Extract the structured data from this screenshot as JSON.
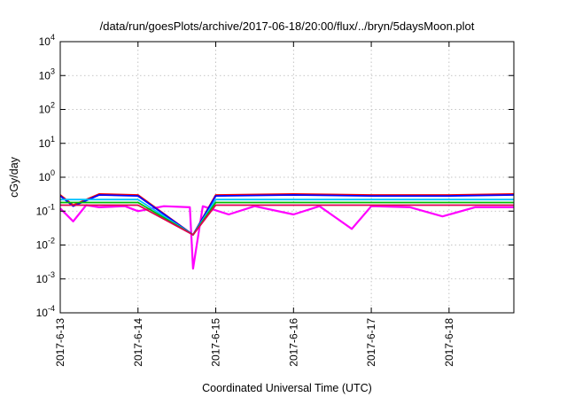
{
  "chart_data": {
    "type": "line",
    "title": "/data/run/goesPlots/archive/2017-06-18/20:00/flux/../bryn/5daysMoon.plot",
    "xlabel": "Coordinated Universal Time (UTC)",
    "ylabel": "cGy/day",
    "y_scale": "log",
    "ylim": [
      0.0001,
      10000
    ],
    "y_ticks": [
      {
        "value": 0.0001,
        "base": "10",
        "exp": "-4"
      },
      {
        "value": 0.001,
        "base": "10",
        "exp": "-3"
      },
      {
        "value": 0.01,
        "base": "10",
        "exp": "-2"
      },
      {
        "value": 0.1,
        "base": "10",
        "exp": "-1"
      },
      {
        "value": 1,
        "base": "10",
        "exp": "0"
      },
      {
        "value": 10,
        "base": "10",
        "exp": "1"
      },
      {
        "value": 100,
        "base": "10",
        "exp": "2"
      },
      {
        "value": 1000,
        "base": "10",
        "exp": "3"
      },
      {
        "value": 10000,
        "base": "10",
        "exp": "4"
      }
    ],
    "xlim": [
      "2017-06-13",
      "2017-06-18 20:00"
    ],
    "x_ticks": [
      "2017-6-13",
      "2017-6-14",
      "2017-6-15",
      "2017-6-16",
      "2017-6-17",
      "2017-6-18"
    ],
    "grid": true,
    "series": [
      {
        "color": "#ff00ff",
        "values": [
          {
            "x": "2017-06-13 00:00",
            "y": 0.12
          },
          {
            "x": "2017-06-13 04:00",
            "y": 0.05
          },
          {
            "x": "2017-06-13 08:00",
            "y": 0.15
          },
          {
            "x": "2017-06-13 12:00",
            "y": 0.13
          },
          {
            "x": "2017-06-13 20:00",
            "y": 0.14
          },
          {
            "x": "2017-06-14 00:00",
            "y": 0.1
          },
          {
            "x": "2017-06-14 08:00",
            "y": 0.14
          },
          {
            "x": "2017-06-14 16:00",
            "y": 0.13
          },
          {
            "x": "2017-06-14 17:00",
            "y": 0.002
          },
          {
            "x": "2017-06-14 20:00",
            "y": 0.14
          },
          {
            "x": "2017-06-15 04:00",
            "y": 0.08
          },
          {
            "x": "2017-06-15 12:00",
            "y": 0.14
          },
          {
            "x": "2017-06-16 00:00",
            "y": 0.08
          },
          {
            "x": "2017-06-16 08:00",
            "y": 0.14
          },
          {
            "x": "2017-06-16 18:00",
            "y": 0.03
          },
          {
            "x": "2017-06-17 00:00",
            "y": 0.14
          },
          {
            "x": "2017-06-17 12:00",
            "y": 0.13
          },
          {
            "x": "2017-06-17 22:00",
            "y": 0.07
          },
          {
            "x": "2017-06-18 08:00",
            "y": 0.13
          },
          {
            "x": "2017-06-18 20:00",
            "y": 0.13
          }
        ]
      },
      {
        "color": "#ff0000",
        "values": [
          {
            "x": "2017-06-13 00:00",
            "y": 0.3
          },
          {
            "x": "2017-06-13 04:00",
            "y": 0.15
          },
          {
            "x": "2017-06-13 12:00",
            "y": 0.32
          },
          {
            "x": "2017-06-14 00:00",
            "y": 0.3
          },
          {
            "x": "2017-06-14 17:00",
            "y": 0.02
          },
          {
            "x": "2017-06-15 00:00",
            "y": 0.3
          },
          {
            "x": "2017-06-16 00:00",
            "y": 0.32
          },
          {
            "x": "2017-06-17 00:00",
            "y": 0.3
          },
          {
            "x": "2017-06-18 00:00",
            "y": 0.3
          },
          {
            "x": "2017-06-18 20:00",
            "y": 0.32
          }
        ]
      },
      {
        "color": "#0000ff",
        "values": [
          {
            "x": "2017-06-13 00:00",
            "y": 0.28
          },
          {
            "x": "2017-06-13 04:00",
            "y": 0.14
          },
          {
            "x": "2017-06-13 12:00",
            "y": 0.3
          },
          {
            "x": "2017-06-14 00:00",
            "y": 0.28
          },
          {
            "x": "2017-06-14 17:00",
            "y": 0.02
          },
          {
            "x": "2017-06-15 00:00",
            "y": 0.28
          },
          {
            "x": "2017-06-16 00:00",
            "y": 0.3
          },
          {
            "x": "2017-06-17 00:00",
            "y": 0.28
          },
          {
            "x": "2017-06-18 00:00",
            "y": 0.28
          },
          {
            "x": "2017-06-18 20:00",
            "y": 0.3
          }
        ]
      },
      {
        "color": "#00c0ff",
        "values": [
          {
            "x": "2017-06-13 00:00",
            "y": 0.22
          },
          {
            "x": "2017-06-14 00:00",
            "y": 0.22
          },
          {
            "x": "2017-06-14 17:00",
            "y": 0.02
          },
          {
            "x": "2017-06-15 00:00",
            "y": 0.22
          },
          {
            "x": "2017-06-16 00:00",
            "y": 0.22
          },
          {
            "x": "2017-06-17 00:00",
            "y": 0.22
          },
          {
            "x": "2017-06-18 00:00",
            "y": 0.22
          },
          {
            "x": "2017-06-18 20:00",
            "y": 0.22
          }
        ]
      },
      {
        "color": "#00c000",
        "values": [
          {
            "x": "2017-06-13 00:00",
            "y": 0.18
          },
          {
            "x": "2017-06-14 00:00",
            "y": 0.18
          },
          {
            "x": "2017-06-14 17:00",
            "y": 0.02
          },
          {
            "x": "2017-06-15 00:00",
            "y": 0.18
          },
          {
            "x": "2017-06-16 00:00",
            "y": 0.18
          },
          {
            "x": "2017-06-17 00:00",
            "y": 0.18
          },
          {
            "x": "2017-06-18 00:00",
            "y": 0.18
          },
          {
            "x": "2017-06-18 20:00",
            "y": 0.18
          }
        ]
      },
      {
        "color": "#e00050",
        "values": [
          {
            "x": "2017-06-13 00:00",
            "y": 0.15
          },
          {
            "x": "2017-06-14 00:00",
            "y": 0.15
          },
          {
            "x": "2017-06-14 17:00",
            "y": 0.02
          },
          {
            "x": "2017-06-15 00:00",
            "y": 0.15
          },
          {
            "x": "2017-06-16 00:00",
            "y": 0.15
          },
          {
            "x": "2017-06-17 00:00",
            "y": 0.15
          },
          {
            "x": "2017-06-18 00:00",
            "y": 0.15
          },
          {
            "x": "2017-06-18 20:00",
            "y": 0.15
          }
        ]
      }
    ]
  }
}
